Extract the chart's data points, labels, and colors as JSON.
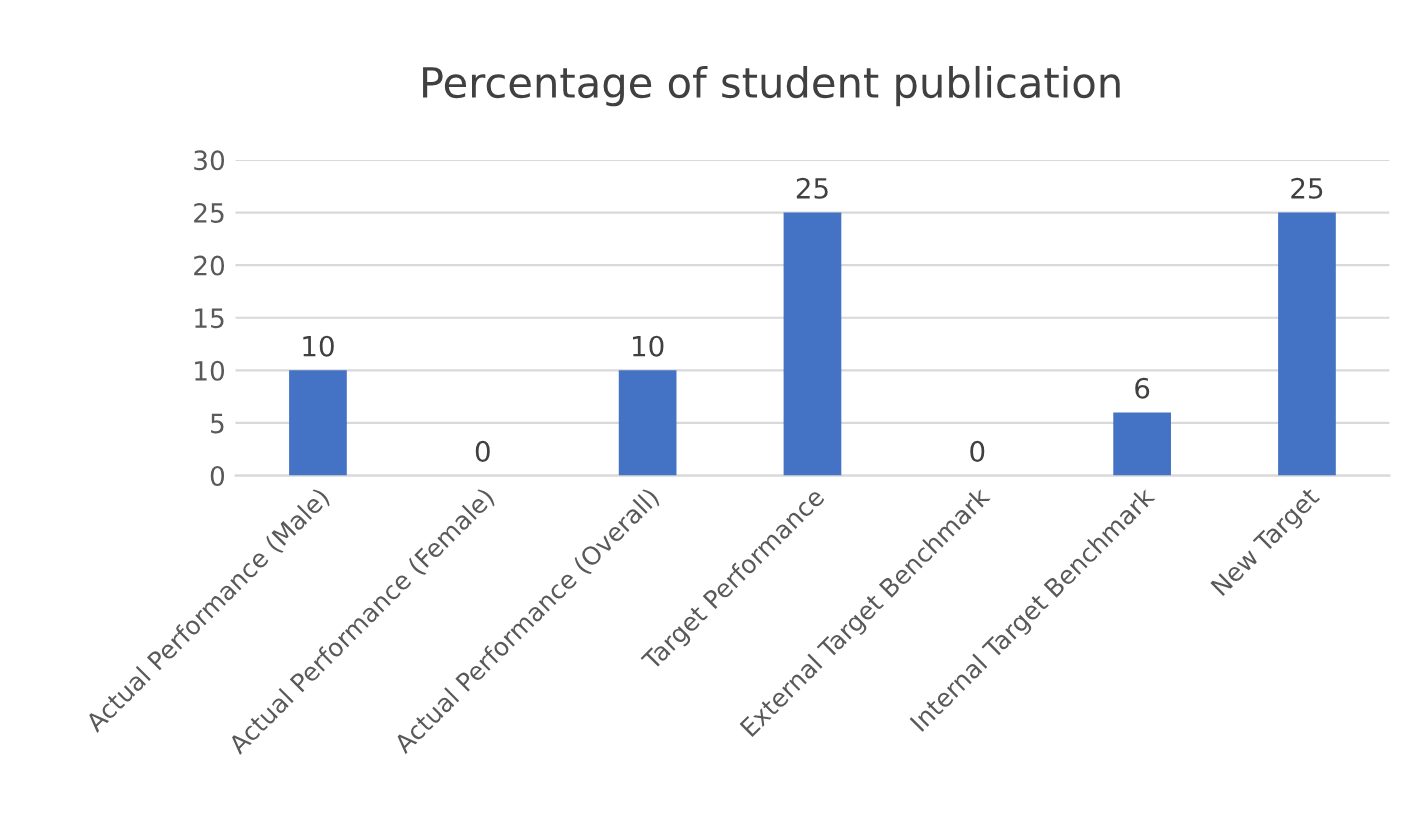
{
  "chart_data": {
    "type": "bar",
    "title": "Percentage of student publication",
    "categories": [
      "Actual Performance (Male)",
      "Actual Performance (Female)",
      "Actual Performance (Overall)",
      "Target Performance",
      "External Target Benchmark",
      "Internal Target Benchmark",
      "New Target"
    ],
    "values": [
      10,
      0,
      10,
      25,
      0,
      6,
      25
    ],
    "color": "#4472c4",
    "ylim": [
      0,
      30
    ],
    "yticks": [
      0,
      5,
      10,
      15,
      20,
      25,
      30
    ],
    "grid": "y",
    "data_labels": true
  }
}
